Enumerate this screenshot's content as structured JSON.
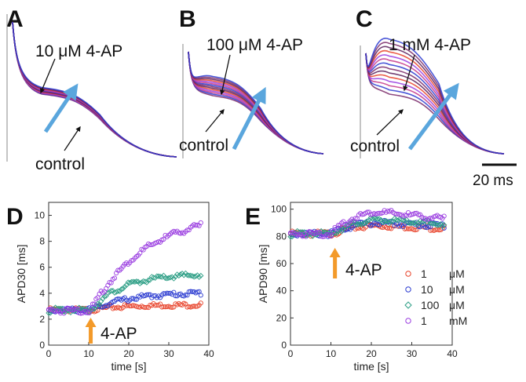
{
  "panels_top": [
    {
      "letter": "A",
      "label": "10 μM 4-AP",
      "control": "control",
      "spread": 0.12
    },
    {
      "letter": "B",
      "label": "100 μM 4-AP",
      "control": "control",
      "spread": 0.35
    },
    {
      "letter": "C",
      "label": "1 mM 4-AP",
      "control": "control",
      "spread": 1.0
    }
  ],
  "scale_bar": {
    "label": "20 ms"
  },
  "colors": {
    "c1": "#e8432b",
    "c10": "#2a3ad0",
    "c100": "#2e9f86",
    "c1000": "#9a3de0",
    "arrow_blue": "#5aa6dd",
    "arrow_orange": "#f39a2a",
    "trace": "#7a2a6a"
  },
  "chart_data": [
    {
      "type": "scatter",
      "panel": "D",
      "xlabel": "time [s]",
      "ylabel": "APD30 [ms]",
      "xlim": [
        0,
        40
      ],
      "ylim": [
        0,
        11
      ],
      "xticks": [
        0,
        10,
        20,
        30,
        40
      ],
      "yticks": [
        0,
        2,
        4,
        6,
        8,
        10
      ],
      "annotation": {
        "text": "4-AP",
        "x": 10.5
      },
      "series": [
        {
          "name": "1 μM",
          "color": "#e8432b",
          "marker": "circle",
          "baseline": 2.8,
          "plateau": 3.2,
          "start": 10.5,
          "tau": 8
        },
        {
          "name": "10 μM",
          "color": "#2a3ad0",
          "marker": "circle",
          "baseline": 2.8,
          "plateau": 4.2,
          "start": 10.5,
          "tau": 10
        },
        {
          "name": "100 μM",
          "color": "#2e9f86",
          "marker": "diamond",
          "baseline": 2.8,
          "plateau": 5.6,
          "start": 10.5,
          "tau": 8
        },
        {
          "name": "1 mM",
          "color": "#9a3de0",
          "marker": "circle",
          "baseline": 2.8,
          "plateau": 10.4,
          "start": 10.5,
          "tau": 14
        }
      ]
    },
    {
      "type": "scatter",
      "panel": "E",
      "xlabel": "time [s]",
      "ylabel": "APD90 [ms]",
      "xlim": [
        0,
        40
      ],
      "ylim": [
        0,
        105
      ],
      "xticks": [
        0,
        10,
        20,
        30,
        40
      ],
      "yticks": [
        0,
        20,
        40,
        60,
        80,
        100
      ],
      "annotation": {
        "text": "4-AP",
        "x": 11
      },
      "legend_placement": "right",
      "series": [
        {
          "name": "1",
          "unit": "μM",
          "color": "#e8432b",
          "marker": "circle",
          "baseline": 83,
          "peak": 89,
          "end": 87
        },
        {
          "name": "10",
          "unit": "μM",
          "color": "#2a3ad0",
          "marker": "circle",
          "baseline": 83,
          "peak": 91,
          "end": 89
        },
        {
          "name": "100",
          "unit": "μM",
          "color": "#2e9f86",
          "marker": "diamond",
          "baseline": 83,
          "peak": 93,
          "end": 90
        },
        {
          "name": "1",
          "unit": "mM",
          "color": "#9a3de0",
          "marker": "circle",
          "baseline": 83,
          "peak": 99,
          "end": 94
        }
      ]
    }
  ]
}
